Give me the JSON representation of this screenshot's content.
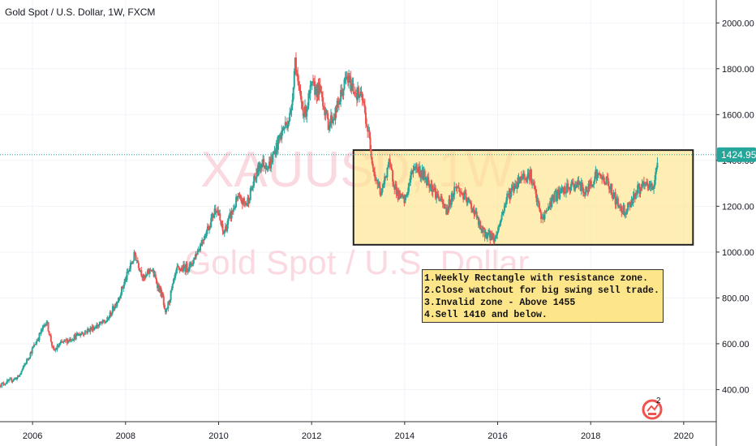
{
  "header": {
    "title": "Gold Spot / U.S. Dollar, 1W, FXCM"
  },
  "watermark": {
    "symbol": "XAUUSD, 1W",
    "name": "Gold Spot / U.S. Dollar"
  },
  "current_price": {
    "label": "1424.95",
    "value": 1424.95,
    "color": "#26a69a"
  },
  "annotation": {
    "lines": [
      "1.Weekly Rectangle with resistance zone.",
      "2.Close watchout for big swing sell trade.",
      "3.Invalid zone - Above 1455",
      "4.Sell 1410 and below."
    ]
  },
  "colors": {
    "up": "#26a69a",
    "down": "#ef5350",
    "zone_fill": "#fde58a",
    "watermark": "#f8bbc7"
  },
  "chart_data": {
    "type": "candlestick",
    "title": "Gold Spot / U.S. Dollar, 1W, FXCM",
    "x_ticks": [
      "2006",
      "2008",
      "2010",
      "2012",
      "2014",
      "2016",
      "2018",
      "2020"
    ],
    "y_ticks": [
      "400.00",
      "600.00",
      "800.00",
      "1000.00",
      "1200.00",
      "1400.00",
      "1600.00",
      "1800.00",
      "2000.00"
    ],
    "xlim": [
      2005.3,
      2020.7
    ],
    "ylim": [
      260,
      2100
    ],
    "rectangle": {
      "x_start": 2012.9,
      "x_end": 2020.2,
      "y_low": 1032,
      "y_high": 1445
    },
    "price_path": [
      [
        2005.3,
        420
      ],
      [
        2005.7,
        455
      ],
      [
        2006.3,
        700
      ],
      [
        2006.45,
        565
      ],
      [
        2006.6,
        600
      ],
      [
        2007.0,
        640
      ],
      [
        2007.3,
        670
      ],
      [
        2007.6,
        700
      ],
      [
        2007.85,
        800
      ],
      [
        2008.2,
        990
      ],
      [
        2008.4,
        880
      ],
      [
        2008.55,
        930
      ],
      [
        2008.8,
        800
      ],
      [
        2008.85,
        720
      ],
      [
        2009.1,
        920
      ],
      [
        2009.4,
        940
      ],
      [
        2009.8,
        1120
      ],
      [
        2009.95,
        1200
      ],
      [
        2010.1,
        1080
      ],
      [
        2010.4,
        1230
      ],
      [
        2010.6,
        1210
      ],
      [
        2010.9,
        1390
      ],
      [
        2011.1,
        1380
      ],
      [
        2011.35,
        1520
      ],
      [
        2011.55,
        1600
      ],
      [
        2011.65,
        1850
      ],
      [
        2011.72,
        1700
      ],
      [
        2011.85,
        1600
      ],
      [
        2012.0,
        1720
      ],
      [
        2012.2,
        1700
      ],
      [
        2012.35,
        1560
      ],
      [
        2012.5,
        1600
      ],
      [
        2012.75,
        1760
      ],
      [
        2012.95,
        1700
      ],
      [
        2013.1,
        1660
      ],
      [
        2013.25,
        1480
      ],
      [
        2013.35,
        1340
      ],
      [
        2013.5,
        1250
      ],
      [
        2013.65,
        1390
      ],
      [
        2013.85,
        1250
      ],
      [
        2014.0,
        1220
      ],
      [
        2014.2,
        1380
      ],
      [
        2014.55,
        1300
      ],
      [
        2014.75,
        1230
      ],
      [
        2014.9,
        1180
      ],
      [
        2015.1,
        1290
      ],
      [
        2015.5,
        1180
      ],
      [
        2015.65,
        1090
      ],
      [
        2015.95,
        1060
      ],
      [
        2016.2,
        1240
      ],
      [
        2016.5,
        1330
      ],
      [
        2016.7,
        1340
      ],
      [
        2016.95,
        1140
      ],
      [
        2017.2,
        1240
      ],
      [
        2017.7,
        1300
      ],
      [
        2017.9,
        1260
      ],
      [
        2018.1,
        1340
      ],
      [
        2018.35,
        1310
      ],
      [
        2018.6,
        1200
      ],
      [
        2018.75,
        1180
      ],
      [
        2019.0,
        1270
      ],
      [
        2019.2,
        1290
      ],
      [
        2019.35,
        1280
      ],
      [
        2019.45,
        1425
      ]
    ]
  }
}
